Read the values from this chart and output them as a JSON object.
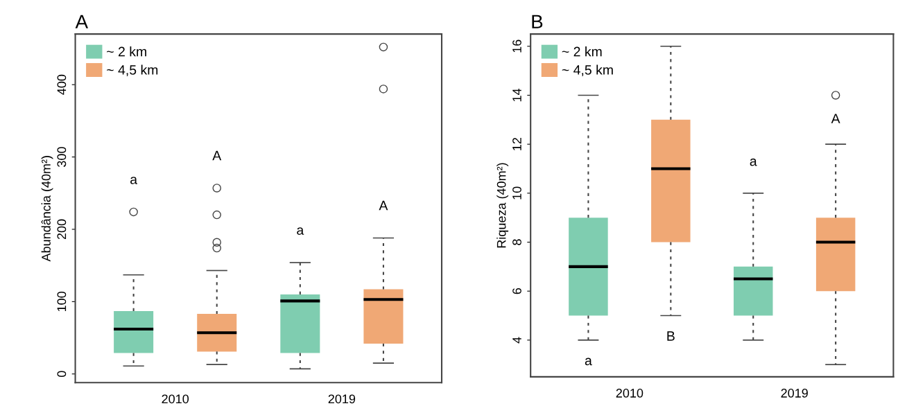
{
  "chart_data": [
    {
      "type": "box",
      "title": "A",
      "ylabel": "Abundância (40m²)",
      "categories": [
        "2010",
        "2019"
      ],
      "ylim": [
        -12,
        470
      ],
      "yticks": [
        0,
        100,
        200,
        300,
        400
      ],
      "legend": "top left",
      "grid": false,
      "series": [
        {
          "name": "~ 2 km",
          "color": "#7fcdb0",
          "boxes": [
            {
              "low": 11,
              "q1": 29,
              "median": 62,
              "q3": 87,
              "high": 137,
              "outliers": [
                224
              ]
            },
            {
              "low": 7,
              "q1": 29,
              "median": 101,
              "q3": 110,
              "high": 154
            }
          ]
        },
        {
          "name": "~ 4,5 km",
          "color": "#f0a875",
          "boxes": [
            {
              "low": 13,
              "q1": 31,
              "median": 57,
              "q3": 83,
              "high": 143,
              "outliers": [
                257,
                220,
                182,
                174
              ]
            },
            {
              "low": 15,
              "q1": 42,
              "median": 103,
              "q3": 117,
              "high": 188,
              "outliers": [
                394,
                452
              ]
            }
          ]
        }
      ],
      "annotations": [
        "a",
        "A",
        "a",
        "A"
      ]
    },
    {
      "type": "box",
      "title": "B",
      "ylabel": "Riqueza (40m²)",
      "categories": [
        "2010",
        "2019"
      ],
      "ylim": [
        2.5,
        16.5
      ],
      "yticks": [
        4,
        6,
        8,
        10,
        12,
        14,
        16
      ],
      "legend": "top left",
      "grid": false,
      "series": [
        {
          "name": "~ 2 km",
          "color": "#7fcdb0",
          "boxes": [
            {
              "low": 4,
              "q1": 5,
              "median": 7,
              "q3": 9,
              "high": 14
            },
            {
              "low": 4,
              "q1": 5,
              "median": 6.5,
              "q3": 7,
              "high": 10
            }
          ]
        },
        {
          "name": "~ 4,5 km",
          "color": "#f0a875",
          "boxes": [
            {
              "low": 5,
              "q1": 8,
              "median": 11,
              "q3": 13,
              "high": 16
            },
            {
              "low": 3,
              "q1": 6,
              "median": 8,
              "q3": 9,
              "high": 12,
              "outliers": [
                14
              ]
            }
          ]
        }
      ],
      "annotations": [
        "a",
        "B",
        "a",
        "A"
      ]
    }
  ]
}
